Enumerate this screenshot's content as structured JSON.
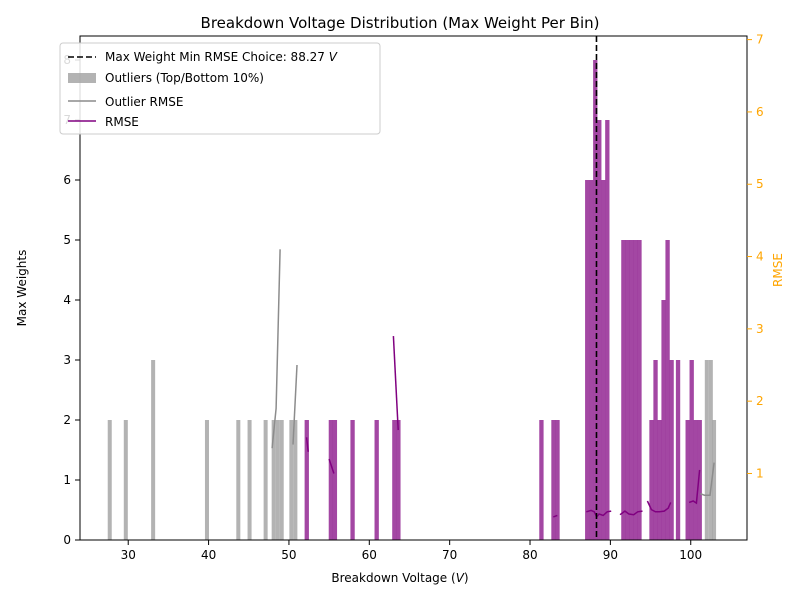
{
  "chart_data": {
    "type": "bar",
    "title": "Breakdown Voltage Distribution (Max Weight Per Bin)",
    "xlabel": "Breakdown Voltage (",
    "xlabel_unit": "V",
    "xlabel_close": ")",
    "ylabel": "Max Weights",
    "y2label": "RMSE",
    "xlim": [
      24,
      107
    ],
    "ylim": [
      0,
      8.4
    ],
    "y2lim": [
      0.08,
      7.05
    ],
    "xticks": [
      30,
      40,
      50,
      60,
      70,
      80,
      90,
      100
    ],
    "yticks": [
      0,
      1,
      2,
      3,
      4,
      5,
      6,
      7,
      8
    ],
    "y2ticks": [
      1,
      2,
      3,
      4,
      5,
      6,
      7
    ],
    "grid": false,
    "legend_position": "top-left",
    "bin_width": 0.5,
    "colors": {
      "rmse": "#800080",
      "bars": "#993399",
      "outlier": "#a6a6a6",
      "outlier_line": "#8c8c8c",
      "vline": "#000000",
      "y2_axis": "#ffa500"
    },
    "vline": {
      "x": 88.27,
      "label_prefix": "Max Weight Min RMSE Choice: 88.27 ",
      "label_unit": "V"
    },
    "legend": [
      {
        "key": "vline",
        "label": "Max Weight Min RMSE Choice: 88.27 ",
        "unit": "V"
      },
      {
        "key": "outliers",
        "label": "Outliers (Top/Bottom 10%)"
      },
      {
        "key": "outlier_rmse",
        "label": "Outlier RMSE"
      },
      {
        "key": "rmse",
        "label": "RMSE"
      }
    ],
    "series": [
      {
        "key": "outliers",
        "x": [
          27.7,
          29.7,
          33.1,
          39.8,
          43.7,
          45.1,
          47.1,
          48.1,
          48.6,
          49.1,
          50.3,
          50.8,
          102.0,
          102.5,
          102.9
        ],
        "values": [
          2,
          2,
          3,
          2,
          2,
          2,
          2,
          2,
          2,
          2,
          2,
          2,
          3,
          3,
          2
        ]
      },
      {
        "key": "bins",
        "x": [
          52.2,
          55.2,
          55.7,
          57.9,
          60.9,
          63.1,
          63.6,
          81.4,
          82.9,
          83.4,
          87.1,
          87.6,
          88.1,
          88.6,
          89.1,
          89.6,
          90.1,
          91.6,
          92.1,
          92.6,
          93.1,
          93.6,
          95.1,
          95.6,
          96.1,
          96.6,
          97.1,
          97.6,
          98.4,
          99.6,
          100.1,
          100.6,
          101.1
        ],
        "values": [
          2,
          2,
          2,
          2,
          2,
          2,
          2,
          2,
          2,
          2,
          6,
          6,
          8,
          7,
          6,
          7,
          0,
          5,
          5,
          5,
          5,
          5,
          2,
          3,
          2,
          4,
          5,
          3,
          3,
          2,
          3,
          2,
          2
        ]
      },
      {
        "key": "outlier_rmse",
        "axis": "y2",
        "segments": [
          [
            [
              47.9,
              1.35
            ],
            [
              48.4,
              1.9
            ],
            [
              48.9,
              4.1
            ]
          ],
          [
            [
              50.5,
              1.4
            ],
            [
              51.0,
              2.5
            ]
          ],
          [
            [
              101.2,
              0.72
            ],
            [
              101.7,
              0.7
            ],
            [
              102.4,
              0.7
            ],
            [
              102.9,
              1.15
            ]
          ]
        ]
      },
      {
        "key": "rmse",
        "axis": "y2",
        "segments": [
          [
            [
              52.2,
              1.5
            ],
            [
              52.4,
              1.3
            ]
          ],
          [
            [
              55.0,
              1.2
            ],
            [
              55.6,
              1.0
            ]
          ],
          [
            [
              63.0,
              2.9
            ],
            [
              63.6,
              1.6
            ]
          ],
          [
            [
              82.9,
              0.4
            ],
            [
              83.4,
              0.42
            ]
          ],
          [
            [
              87.0,
              0.47
            ],
            [
              87.6,
              0.49
            ],
            [
              88.0,
              0.47
            ],
            [
              88.3,
              0.4
            ],
            [
              88.6,
              0.44
            ],
            [
              89.1,
              0.42
            ],
            [
              89.6,
              0.47
            ],
            [
              90.1,
              0.48
            ]
          ],
          [
            [
              91.2,
              0.43
            ],
            [
              91.8,
              0.48
            ],
            [
              92.3,
              0.44
            ],
            [
              92.9,
              0.43
            ],
            [
              93.4,
              0.47
            ],
            [
              94.0,
              0.48
            ]
          ],
          [
            [
              94.6,
              0.62
            ],
            [
              95.1,
              0.5
            ],
            [
              95.6,
              0.47
            ],
            [
              96.1,
              0.47
            ],
            [
              96.7,
              0.48
            ],
            [
              97.2,
              0.52
            ],
            [
              97.5,
              0.6
            ]
          ],
          [
            [
              99.8,
              0.6
            ],
            [
              100.3,
              0.62
            ],
            [
              100.7,
              0.59
            ],
            [
              101.1,
              1.05
            ]
          ]
        ]
      }
    ]
  }
}
